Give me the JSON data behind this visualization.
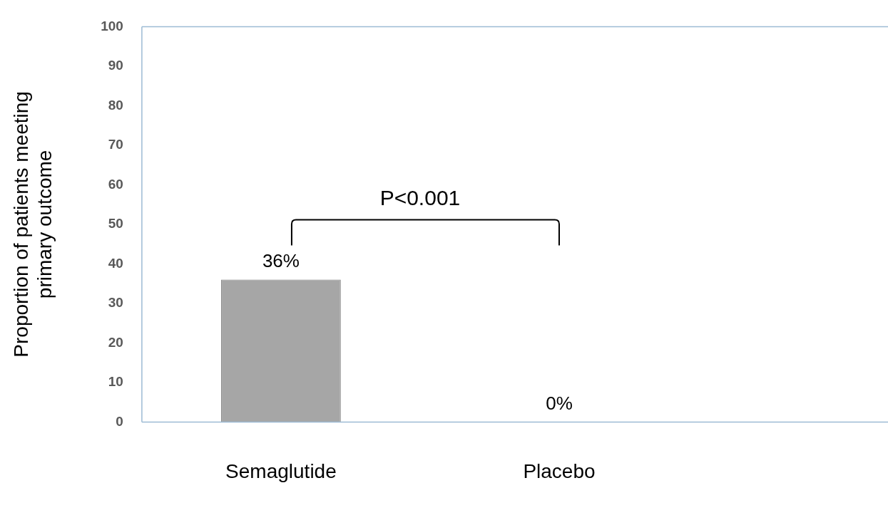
{
  "chart_data": {
    "type": "bar",
    "ylabel": "Proportion of patients meeting\nprimary outcome",
    "categories": [
      "Semaglutide",
      "Placebo"
    ],
    "values": [
      36,
      0
    ],
    "value_labels": [
      "36%",
      "0%"
    ],
    "color": "#a6a6a6",
    "ylim": [
      0,
      100
    ],
    "yticks": [
      0,
      10,
      20,
      30,
      40,
      50,
      60,
      70,
      80,
      90,
      100
    ],
    "annotations": [
      "P<0.001"
    ],
    "grid": false,
    "legend": false
  }
}
